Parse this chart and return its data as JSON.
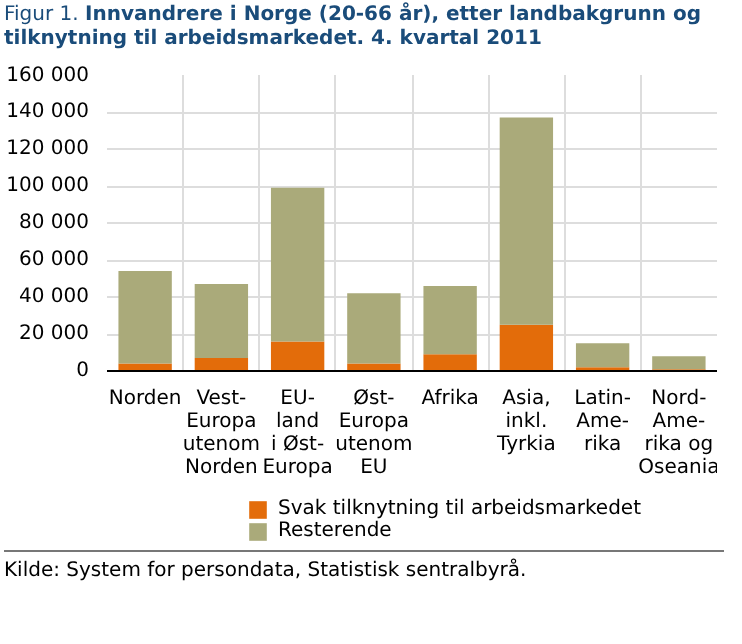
{
  "chart_data": {
    "type": "bar",
    "stacked": true,
    "title": "Figur 1. Innvandrere i Norge (20-66 år), etter landbakgrunn og tilknytning til arbeidsmarkedet. 4. kvartal 2011",
    "categories": [
      "Norden",
      "Vest-\nEuropa\nutenom\nNorden",
      "EU-\nland\ni Øst-\nEuropa",
      "Øst-\nEuropa\nutenom\nEU",
      "Afrika",
      "Asia,\ninkl.\nTyrkia",
      "Latin-\nAme-\nrika",
      "Nord-\nAme-\nrika og\nOseania"
    ],
    "series": [
      {
        "name": "Svak tilknytning til arbeidsmarkedet",
        "color": "#e36c0a",
        "values": [
          4000,
          7000,
          16000,
          4000,
          9000,
          25000,
          2000,
          1000
        ]
      },
      {
        "name": "Resterende",
        "color": "#aaaa7a",
        "values": [
          50000,
          40000,
          83000,
          38000,
          37000,
          112000,
          13000,
          7000
        ]
      }
    ],
    "ylim": [
      0,
      160000
    ],
    "yticks": [
      {
        "value": 0,
        "label": "0"
      },
      {
        "value": 20000,
        "label": "20 000"
      },
      {
        "value": 40000,
        "label": "40 000"
      },
      {
        "value": 60000,
        "label": "60 000"
      },
      {
        "value": 80000,
        "label": "80 000"
      },
      {
        "value": 100000,
        "label": "100 000"
      },
      {
        "value": 120000,
        "label": "120 000"
      },
      {
        "value": 140000,
        "label": "140 000"
      },
      {
        "value": 160000,
        "label": "160 000"
      }
    ],
    "grid": true,
    "legend": "bottom",
    "annotations": [
      "Kilde: System for persondata, Statistisk sentralbyrå."
    ]
  }
}
